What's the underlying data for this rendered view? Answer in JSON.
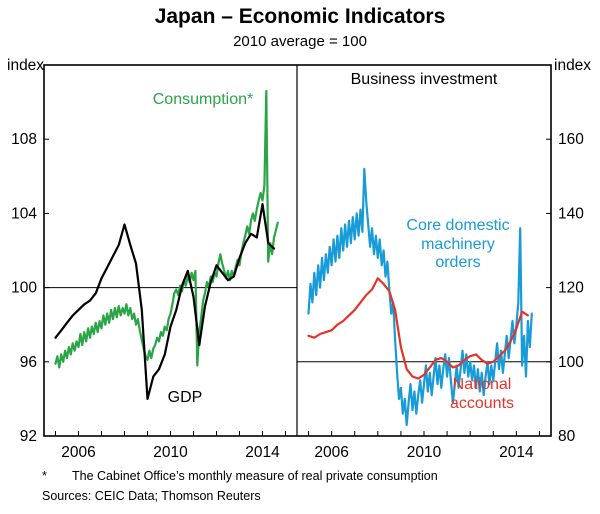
{
  "title": "Japan – Economic Indicators",
  "subtitle": "2010 average = 100",
  "labels": {
    "consumption": "Consumption*",
    "gdp": "GDP",
    "business_investment": "Business investment",
    "machinery_orders": "Core domestic\nmachinery\norders",
    "national_accounts": "National\naccounts",
    "left_unit": "index",
    "right_unit": "index"
  },
  "footnote": {
    "marker": "*",
    "text": "The Cabinet Office’s monthly measure of real private consumption"
  },
  "sources": "Sources:  CEIC Data; Thomson Reuters",
  "chart_data": [
    {
      "type": "line",
      "panel": "left",
      "title": "",
      "ylabel": "index",
      "ylim": [
        92,
        112
      ],
      "yticks": [
        92,
        96,
        100,
        104,
        108
      ],
      "xlim": [
        2004.5,
        2015.5
      ],
      "xticks_labeled": [
        2006,
        2010,
        2014
      ],
      "reference_line": 100,
      "grid": false,
      "series": [
        {
          "name": "Consumption",
          "label": "Consumption*",
          "color": "#2aa546",
          "x_start": 2005.0,
          "x_step": 0.083333,
          "values": [
            95.9,
            96.3,
            95.7,
            96.4,
            96.0,
            96.6,
            96.2,
            96.8,
            96.4,
            97.0,
            96.6,
            97.1,
            96.8,
            97.5,
            96.9,
            97.6,
            97.1,
            97.8,
            97.3,
            97.9,
            97.5,
            98.1,
            97.6,
            98.2,
            97.8,
            98.5,
            98.0,
            98.6,
            98.1,
            98.8,
            98.3,
            98.9,
            98.4,
            99.0,
            98.5,
            98.9,
            98.6,
            99.1,
            98.5,
            98.9,
            98.3,
            98.6,
            98.0,
            98.3,
            97.7,
            97.2,
            96.7,
            96.3,
            96.1,
            96.6,
            96.2,
            96.7,
            96.9,
            97.3,
            97.1,
            97.6,
            97.4,
            97.9,
            97.7,
            98.3,
            98.6,
            99.1,
            99.7,
            99.9,
            99.6,
            100.1,
            99.8,
            100.4,
            100.1,
            100.6,
            100.3,
            100.8,
            100.4,
            100.9,
            95.8,
            97.6,
            98.4,
            99.3,
            99.7,
            100.3,
            100.0,
            100.6,
            100.3,
            100.8,
            100.6,
            101.3,
            101.8,
            101.3,
            100.9,
            100.5,
            100.9,
            100.4,
            100.9,
            100.6,
            101.1,
            101.5,
            101.2,
            101.9,
            102.4,
            102.8,
            103.3,
            102.9,
            103.6,
            104.0,
            103.6,
            104.2,
            104.7,
            105.1,
            104.7,
            105.5,
            110.6,
            101.4,
            102.4,
            101.8,
            102.7,
            103.1,
            103.5
          ]
        },
        {
          "name": "GDP",
          "label": "GDP",
          "color": "#000000",
          "x_start": 2005.0,
          "x_step": 0.25,
          "values": [
            97.3,
            97.7,
            98.1,
            98.5,
            98.8,
            99.1,
            99.3,
            99.7,
            100.5,
            101.1,
            101.7,
            102.3,
            103.4,
            102.3,
            101.3,
            98.8,
            94.0,
            95.2,
            95.6,
            96.4,
            97.9,
            98.8,
            100.1,
            100.9,
            99.5,
            96.9,
            99.0,
            100.3,
            101.2,
            100.8,
            100.4,
            100.6,
            101.6,
            102.4,
            102.9,
            102.7,
            104.5,
            102.4,
            102.1
          ]
        }
      ]
    },
    {
      "type": "line",
      "panel": "right",
      "title": "Business investment",
      "ylabel": "index",
      "ylim": [
        80,
        180
      ],
      "yticks": [
        80,
        100,
        120,
        140,
        160
      ],
      "xlim": [
        2004.5,
        2015.5
      ],
      "xticks_labeled": [
        2006,
        2010,
        2014
      ],
      "reference_line": 100,
      "grid": false,
      "series": [
        {
          "name": "Core domestic machinery orders",
          "label": "Core domestic machinery orders",
          "color": "#189bd7",
          "x_start": 2005.0,
          "x_step": 0.083333,
          "values": [
            113,
            121,
            116,
            124,
            118,
            126,
            120,
            128,
            122,
            129,
            124,
            131,
            126,
            133,
            127,
            134,
            128,
            136,
            130,
            137,
            131,
            138,
            132,
            139,
            133,
            140,
            134,
            141,
            135,
            152,
            143,
            137,
            131,
            136,
            129,
            134,
            128,
            133,
            126,
            130,
            123,
            127,
            119,
            113,
            116,
            106,
            97,
            90,
            93,
            86,
            90,
            83,
            89,
            94,
            87,
            92,
            86,
            91,
            95,
            89,
            94,
            99,
            92,
            97,
            91,
            96,
            101,
            94,
            99,
            93,
            98,
            102,
            96,
            101,
            95,
            89,
            94,
            99,
            93,
            98,
            103,
            97,
            102,
            96,
            100,
            95,
            99,
            93,
            98,
            92,
            97,
            91,
            96,
            100,
            94,
            99,
            95,
            100,
            105,
            98,
            103,
            97,
            102,
            107,
            101,
            106,
            111,
            105,
            110,
            116,
            136,
            99,
            107,
            96,
            111,
            104,
            113
          ]
        },
        {
          "name": "National accounts",
          "label": "National accounts",
          "color": "#e63329",
          "x_start": 2005.0,
          "x_step": 0.25,
          "values": [
            107.0,
            106.5,
            107.5,
            108.0,
            108.5,
            110.0,
            111.0,
            112.5,
            114.0,
            116.0,
            118.0,
            119.5,
            122.5,
            121.0,
            119.0,
            114.0,
            104.0,
            98.0,
            96.0,
            95.5,
            96.5,
            98.5,
            100.5,
            101.0,
            100.0,
            98.5,
            99.0,
            100.5,
            101.5,
            102.0,
            100.5,
            99.5,
            100.0,
            101.5,
            103.0,
            105.5,
            109.0,
            113.5,
            112.5
          ]
        }
      ]
    }
  ]
}
